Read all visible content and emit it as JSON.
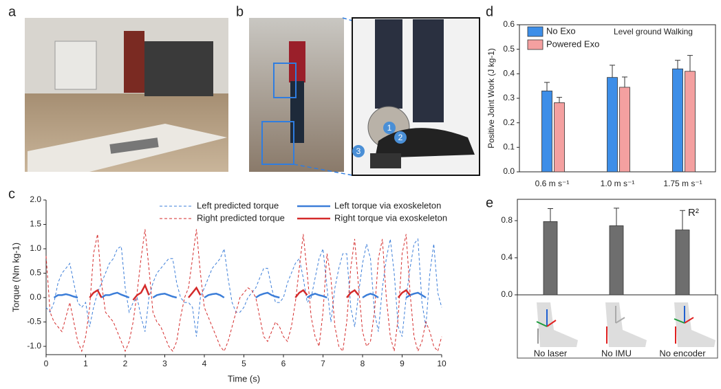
{
  "panels": [
    "a",
    "b"
  ],
  "markers": [
    "1",
    "2",
    "3"
  ],
  "chart_data": [
    {
      "type": "line",
      "panel": "c",
      "xlabel": "Time (s)",
      "ylabel": "Torque (Nm kg-1)",
      "xlim": [
        0,
        10
      ],
      "ylim": [
        -1.17,
        2.0
      ],
      "xticks": [
        0,
        1,
        2,
        3,
        4,
        5,
        6,
        7,
        8,
        9,
        10
      ],
      "yticks": [
        {
          "value": -1.0,
          "label": "-1.0"
        },
        -0.5,
        {
          "value": 0.0,
          "label": "0.0"
        },
        0.5,
        {
          "value": 1.0,
          "label": "1.0"
        },
        1.5,
        {
          "value": 2.0,
          "label": "2.0"
        }
      ],
      "x": [
        0,
        0.1,
        0.2,
        0.3,
        0.4,
        0.5,
        0.6,
        0.7,
        0.8,
        0.9,
        1,
        1.1,
        1.2,
        1.3,
        1.4,
        1.5,
        1.6,
        1.7,
        1.8,
        1.9,
        2,
        2.1,
        2.2,
        2.3,
        2.4,
        2.5,
        2.6,
        2.7,
        2.8,
        2.9,
        3,
        3.1,
        3.2,
        3.3,
        3.4,
        3.5,
        3.6,
        3.7,
        3.8,
        3.9,
        4,
        4.1,
        4.2,
        4.3,
        4.4,
        4.5,
        4.6,
        4.7,
        4.8,
        4.9,
        5,
        5.1,
        5.2,
        5.3,
        5.4,
        5.5,
        5.6,
        5.7,
        5.8,
        5.9,
        6,
        6.1,
        6.2,
        6.3,
        6.4,
        6.5,
        6.6,
        6.7,
        6.8,
        6.9,
        7,
        7.1,
        7.2,
        7.3,
        7.4,
        7.5,
        7.6,
        7.7,
        7.8,
        7.9,
        8,
        8.1,
        8.2,
        8.3,
        8.4,
        8.5,
        8.6,
        8.7,
        8.8,
        8.9,
        9,
        9.1,
        9.2,
        9.3,
        9.4,
        9.5,
        9.6,
        9.7,
        9.8,
        9.9,
        10
      ],
      "series": [
        {
          "name": "Left predicted torque",
          "color": "#3b7dd8",
          "style": "dashed",
          "values": [
            -0.2,
            -0.3,
            -0.1,
            0.3,
            0.5,
            0.6,
            0.7,
            0.3,
            -0.1,
            -0.2,
            -0.1,
            -0.6,
            -0.2,
            0.1,
            0.3,
            0.5,
            0.7,
            0.8,
            1.0,
            1.05,
            0.2,
            -0.3,
            -0.1,
            0.0,
            -0.4,
            -0.7,
            0.0,
            0.3,
            0.5,
            0.6,
            0.7,
            0.8,
            0.8,
            0.3,
            0.0,
            -0.1,
            -0.1,
            -0.2,
            -0.8,
            0.0,
            0.2,
            0.4,
            0.6,
            0.7,
            0.8,
            1.0,
            0.4,
            -0.1,
            -0.3,
            -0.3,
            -0.2,
            0.0,
            0.1,
            0.2,
            0.4,
            0.6,
            0.6,
            0.2,
            -0.1,
            -0.1,
            0.0,
            0.3,
            0.5,
            0.7,
            0.8,
            0.4,
            -0.1,
            0.0,
            0.4,
            0.8,
            1.0,
            0.2,
            -0.5,
            0.2,
            0.6,
            0.9,
            0.9,
            -0.2,
            -0.6,
            0.1,
            0.7,
            1.1,
            0.8,
            -0.3,
            -0.7,
            0.2,
            0.8,
            1.2,
            0.5,
            -0.6,
            -0.8,
            0.0,
            0.6,
            1.1,
            1.2,
            -0.1,
            -0.6,
            0.5,
            1.1,
            0.1,
            -0.2
          ]
        },
        {
          "name": "Right predicted torque",
          "color": "#d42a2a",
          "style": "dashed",
          "values": [
            0.85,
            -0.3,
            -0.5,
            -0.6,
            -0.7,
            -0.4,
            -0.1,
            -0.5,
            -0.9,
            -1.1,
            -0.8,
            -0.2,
            0.9,
            1.3,
            0.3,
            -0.3,
            -0.4,
            -0.5,
            -0.7,
            -0.9,
            -1.1,
            -0.9,
            -0.5,
            0.1,
            0.8,
            1.4,
            0.6,
            -0.3,
            -0.5,
            -0.6,
            -0.8,
            -1.0,
            -1.1,
            -0.9,
            -0.4,
            0.0,
            0.2,
            0.8,
            1.4,
            0.5,
            -0.2,
            -0.4,
            -0.6,
            -0.8,
            -1.0,
            -1.1,
            -0.9,
            -0.6,
            -0.3,
            0.0,
            0.1,
            0.2,
            0.15,
            0.0,
            -0.4,
            -0.8,
            -0.9,
            -0.7,
            -0.5,
            -0.6,
            -0.8,
            -0.9,
            -0.6,
            -0.1,
            0.6,
            1.3,
            0.5,
            -0.4,
            -0.8,
            -1.0,
            -0.3,
            0.9,
            0.4,
            -0.6,
            -1.0,
            -1.1,
            -0.5,
            0.6,
            1.2,
            0.2,
            -0.7,
            -1.0,
            -0.9,
            -0.3,
            0.8,
            1.2,
            0.0,
            -0.8,
            -1.1,
            -0.4,
            0.9,
            1.3,
            0.1,
            -0.8,
            -1.1,
            -0.9,
            -0.5,
            -0.7,
            -1.0,
            -1.1,
            -0.8
          ]
        },
        {
          "name": "Left torque  via exoskeleton",
          "color": "#3b7dd8",
          "style": "solid",
          "values": [
            null,
            null,
            0.0,
            0.05,
            0.05,
            0.07,
            0.05,
            0.02,
            0.0,
            null,
            null,
            null,
            null,
            null,
            0.0,
            0.05,
            0.05,
            0.08,
            0.1,
            0.06,
            0.03,
            0.0,
            null,
            null,
            null,
            null,
            null,
            0.0,
            0.05,
            0.07,
            0.08,
            0.05,
            0.02,
            0.0,
            null,
            null,
            null,
            null,
            null,
            null,
            0.0,
            0.05,
            0.07,
            0.08,
            0.05,
            0.0,
            null,
            null,
            null,
            null,
            null,
            null,
            null,
            0.0,
            0.05,
            0.08,
            0.1,
            0.05,
            0.02,
            0.0,
            null,
            null,
            null,
            null,
            null,
            null,
            0.0,
            0.05,
            0.08,
            0.05,
            0.03,
            0.0,
            null,
            null,
            null,
            null,
            null,
            null,
            null,
            null,
            0.0,
            0.05,
            0.08,
            0.05,
            0.0,
            null,
            null,
            null,
            null,
            null,
            null,
            0.0,
            0.05,
            0.08,
            0.1,
            0.05,
            0.0,
            null,
            null,
            null,
            null
          ]
        },
        {
          "name": "Right torque  via exoskeleton",
          "color": "#d42a2a",
          "style": "solid",
          "values": [
            null,
            null,
            null,
            null,
            null,
            null,
            null,
            null,
            null,
            null,
            null,
            0.0,
            0.1,
            0.15,
            0.0,
            null,
            null,
            null,
            null,
            null,
            null,
            null,
            -0.05,
            0.05,
            0.1,
            0.25,
            0.05,
            null,
            null,
            null,
            null,
            null,
            null,
            null,
            null,
            null,
            0.0,
            0.1,
            0.2,
            0.05,
            null,
            null,
            null,
            null,
            null,
            null,
            null,
            null,
            null,
            null,
            null,
            null,
            null,
            null,
            null,
            null,
            null,
            null,
            null,
            null,
            null,
            null,
            null,
            0.0,
            0.1,
            0.15,
            0.05,
            null,
            null,
            null,
            null,
            null,
            null,
            null,
            null,
            null,
            0.0,
            0.1,
            0.15,
            0.05,
            null,
            null,
            null,
            null,
            null,
            null,
            null,
            null,
            null,
            0.0,
            0.1,
            0.15,
            0.05,
            null,
            null,
            null,
            null,
            null,
            null,
            null,
            null
          ]
        }
      ]
    },
    {
      "type": "bar",
      "panel": "d",
      "ylabel": "Positive Joint Work (J kg-1)",
      "annotation": "Level ground Walking",
      "legend": "upper left",
      "categories": [
        "0.6 m s⁻¹",
        "1.0 m s⁻¹",
        "1.75 m s⁻¹"
      ],
      "ylim": [
        0,
        0.6
      ],
      "yticks": [
        {
          "value": 0.0,
          "label": "0.0"
        },
        0.1,
        0.2,
        0.3,
        0.4,
        0.5,
        0.6
      ],
      "series": [
        {
          "name": "No Exo",
          "color": "#3d8ee8",
          "values": [
            0.33,
            0.385,
            0.42
          ],
          "errors": [
            0.035,
            0.05,
            0.035
          ]
        },
        {
          "name": "Powered Exo",
          "color": "#f4a0a0",
          "values": [
            0.282,
            0.345,
            0.41
          ],
          "errors": [
            0.022,
            0.042,
            0.065
          ]
        }
      ]
    },
    {
      "type": "bar",
      "panel": "e",
      "annotation": "R²",
      "categories": [
        "No laser",
        "No IMU",
        "No encoder"
      ],
      "ylim": [
        0,
        1.03
      ],
      "yticks": [
        {
          "value": 0.0,
          "label": "0.0"
        },
        0.4,
        0.8
      ],
      "series": [
        {
          "color": "#6e6e6e",
          "values": [
            0.79,
            0.745,
            0.7
          ],
          "errors": [
            0.14,
            0.19,
            0.21
          ]
        }
      ]
    }
  ]
}
